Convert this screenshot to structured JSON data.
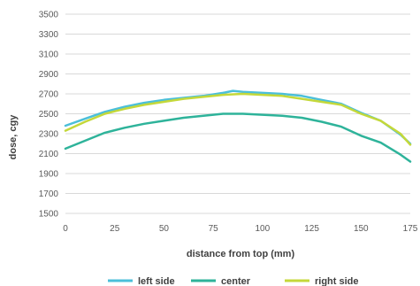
{
  "chart_data": {
    "type": "line",
    "title": "",
    "xlabel": "distance from top (mm)",
    "ylabel": "dose, cgy",
    "xlim": [
      0,
      175
    ],
    "ylim": [
      1500,
      3500
    ],
    "x_ticks": [
      "0",
      "25",
      "50",
      "75",
      "100",
      "125",
      "150",
      "175"
    ],
    "y_ticks": [
      "1500",
      "1700",
      "1900",
      "2100",
      "2300",
      "2500",
      "2700",
      "2900",
      "3100",
      "3300",
      "3500"
    ],
    "grid": "horizontal",
    "legend_position": "bottom",
    "series": [
      {
        "name": "left side",
        "color": "#4BBFD9",
        "points": [
          [
            0,
            2380
          ],
          [
            10,
            2450
          ],
          [
            20,
            2520
          ],
          [
            30,
            2570
          ],
          [
            40,
            2610
          ],
          [
            50,
            2640
          ],
          [
            60,
            2660
          ],
          [
            70,
            2680
          ],
          [
            80,
            2710
          ],
          [
            85,
            2730
          ],
          [
            90,
            2720
          ],
          [
            100,
            2710
          ],
          [
            110,
            2700
          ],
          [
            120,
            2680
          ],
          [
            130,
            2640
          ],
          [
            140,
            2600
          ],
          [
            150,
            2510
          ],
          [
            160,
            2430
          ],
          [
            170,
            2290
          ],
          [
            175,
            2200
          ]
        ]
      },
      {
        "name": "center",
        "color": "#2EB39A",
        "points": [
          [
            0,
            2150
          ],
          [
            10,
            2230
          ],
          [
            20,
            2310
          ],
          [
            30,
            2360
          ],
          [
            40,
            2400
          ],
          [
            50,
            2430
          ],
          [
            60,
            2460
          ],
          [
            70,
            2480
          ],
          [
            80,
            2500
          ],
          [
            90,
            2500
          ],
          [
            100,
            2490
          ],
          [
            110,
            2480
          ],
          [
            120,
            2460
          ],
          [
            130,
            2420
          ],
          [
            140,
            2370
          ],
          [
            150,
            2280
          ],
          [
            160,
            2210
          ],
          [
            170,
            2090
          ],
          [
            175,
            2020
          ]
        ]
      },
      {
        "name": "right side",
        "color": "#C4D83A",
        "points": [
          [
            0,
            2330
          ],
          [
            10,
            2420
          ],
          [
            20,
            2500
          ],
          [
            30,
            2550
          ],
          [
            40,
            2590
          ],
          [
            50,
            2620
          ],
          [
            60,
            2650
          ],
          [
            70,
            2670
          ],
          [
            80,
            2690
          ],
          [
            90,
            2700
          ],
          [
            100,
            2690
          ],
          [
            110,
            2680
          ],
          [
            120,
            2650
          ],
          [
            130,
            2620
          ],
          [
            140,
            2590
          ],
          [
            150,
            2500
          ],
          [
            160,
            2430
          ],
          [
            170,
            2300
          ],
          [
            175,
            2190
          ]
        ]
      }
    ]
  }
}
